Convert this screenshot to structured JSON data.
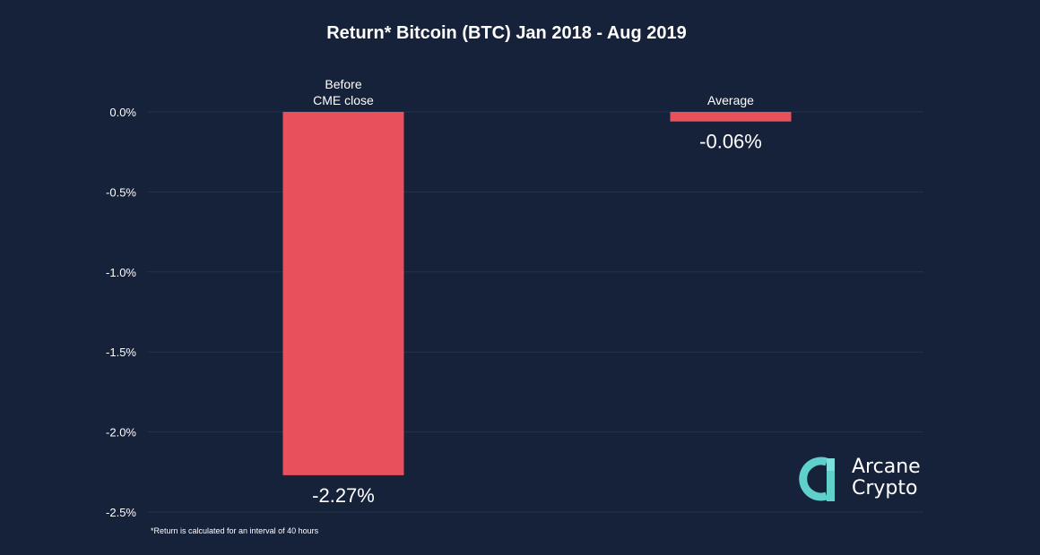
{
  "colors": {
    "background": "#16213a",
    "bar": "#e8505b",
    "gridline": "#27324a",
    "text": "#ffffff",
    "logo_teal": "#5fd0cc"
  },
  "chart_data": {
    "type": "bar",
    "title": "Return* Bitcoin (BTC) Jan 2018 - Aug 2019",
    "categories": [
      "Before\nCME close",
      "Average"
    ],
    "values": [
      -2.27,
      -0.06
    ],
    "data_labels": [
      "-2.27%",
      "-0.06%"
    ],
    "yticks": [
      "0.0%",
      "-0.5%",
      "-1.0%",
      "-1.5%",
      "-2.0%",
      "-2.5%"
    ],
    "ytick_values": [
      0.0,
      -0.5,
      -1.0,
      -1.5,
      -2.0,
      -2.5
    ],
    "ylim": [
      -2.5,
      0.0
    ],
    "grid": true,
    "xlabel": "",
    "ylabel": ""
  },
  "footnote": "*Return is calculated for an interval of 40 hours",
  "logo": {
    "line1": "Arcane",
    "line2": "Crypto",
    "icon": "arcane-crypto-logo-icon"
  }
}
